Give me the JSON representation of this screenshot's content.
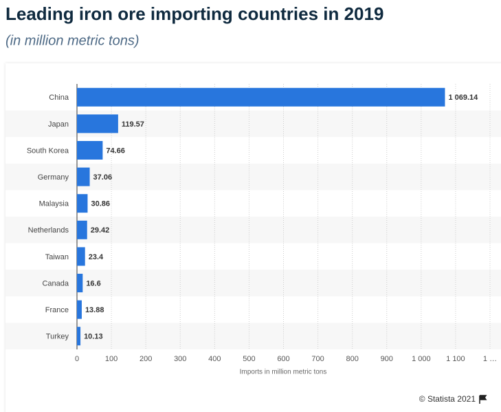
{
  "chart_data": {
    "type": "hbar",
    "title": "Leading iron ore importing countries in 2019",
    "subtitle": "(in million metric tons)",
    "x_label": "Imports in million metric tons",
    "source": "© Statista 2021",
    "categories": [
      "China",
      "Japan",
      "South Korea",
      "Germany",
      "Malaysia",
      "Netherlands",
      "Taiwan",
      "Canada",
      "France",
      "Turkey"
    ],
    "values": [
      1069.14,
      119.57,
      74.66,
      37.06,
      30.86,
      29.42,
      23.4,
      16.6,
      13.88,
      10.13
    ],
    "value_labels": [
      "1 069.14",
      "119.57",
      "74.66",
      "37.06",
      "30.86",
      "29.42",
      "23.4",
      "16.6",
      "13.88",
      "10.13"
    ],
    "color": "#2876dd",
    "xlim": [
      0,
      1200
    ],
    "xticks": [
      0,
      100,
      200,
      300,
      400,
      500,
      600,
      700,
      800,
      900,
      {
        "value": 1000,
        "label": "1 000"
      },
      {
        "value": 1100,
        "label": "1 100"
      },
      {
        "value": 1200,
        "label": "1 …"
      }
    ],
    "grid": true
  }
}
